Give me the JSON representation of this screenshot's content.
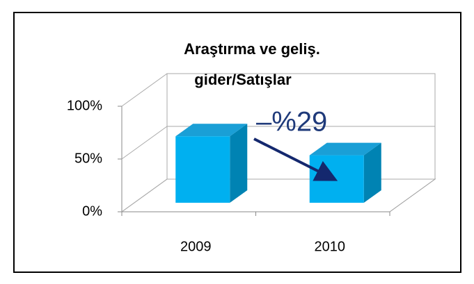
{
  "chart_data": {
    "type": "bar3d",
    "title": [
      "Araştırma ve geliş.",
      "gider/Satışlar"
    ],
    "categories": [
      "2009",
      "2010"
    ],
    "values": [
      63,
      45
    ],
    "color": "#00b0f0",
    "ylim": [
      0,
      100
    ],
    "yticks": [
      {
        "value": 0,
        "label": "0%"
      },
      {
        "value": 50,
        "label": "50%"
      },
      {
        "value": 100,
        "label": "100%"
      }
    ],
    "grid": true,
    "annotation": "–%29"
  }
}
